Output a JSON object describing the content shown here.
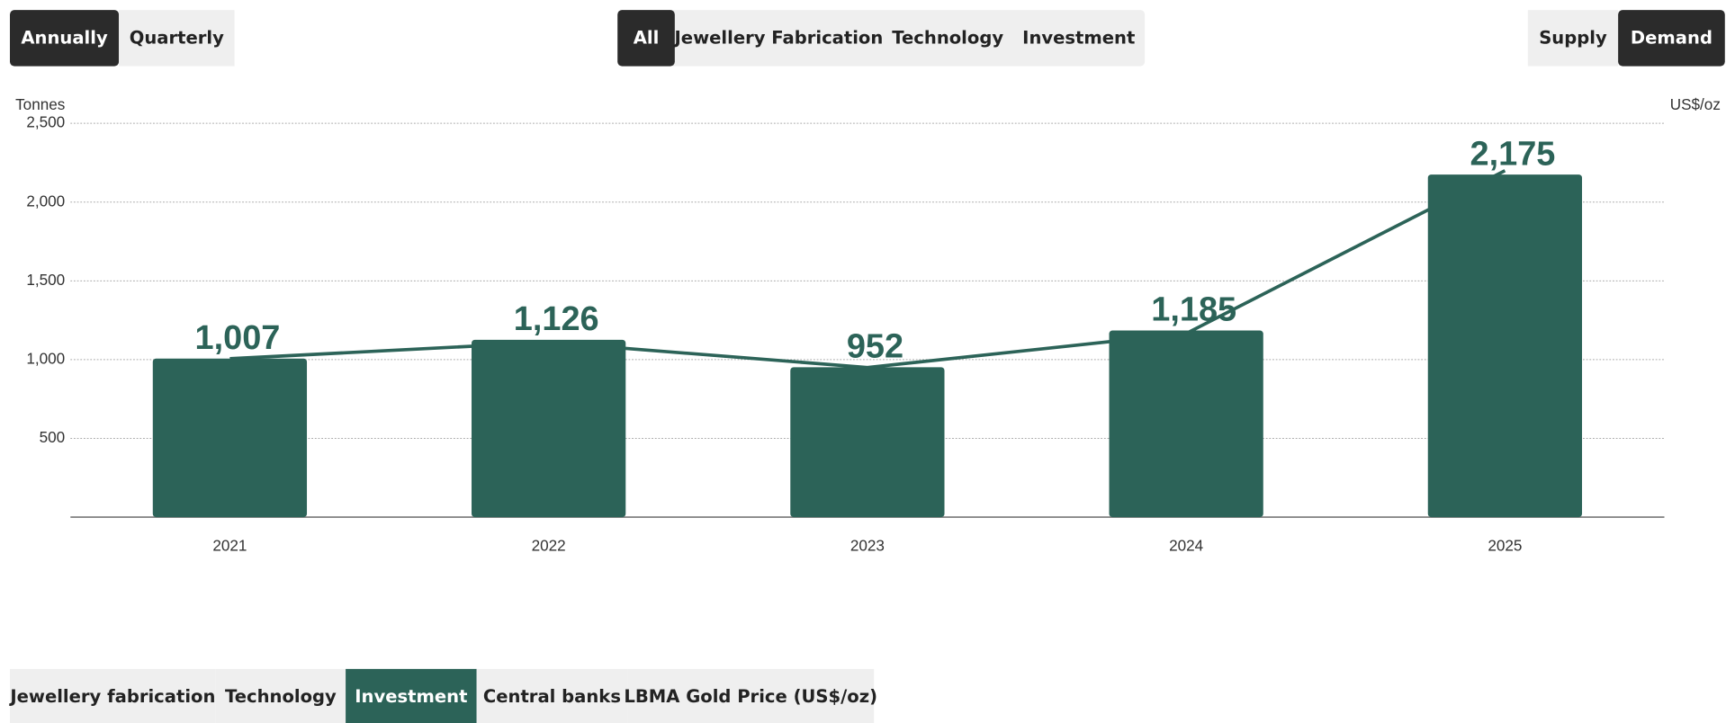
{
  "controls": {
    "period_tabs": [
      "Annually",
      "Quarterly"
    ],
    "category_tabs": [
      "All",
      "Jewellery Fabrication",
      "Technology",
      "Investment"
    ],
    "side_tabs": [
      "Supply",
      "Demand"
    ],
    "bottom_tabs": [
      "Jewellery fabrication",
      "Technology",
      "Investment",
      "Central banks",
      "LBMA Gold Price (US$/oz)"
    ]
  },
  "chart_data": {
    "type": "bar",
    "y_label": "Tonnes",
    "y2_label": "US$/oz",
    "categories": [
      "2021",
      "2022",
      "2023",
      "2024",
      "2025"
    ],
    "ylim": [
      0,
      2500
    ],
    "yticks": [
      500,
      {
        "value": 1000,
        "label": "1,000"
      },
      {
        "value": 1500,
        "label": "1,500"
      },
      {
        "value": 2000,
        "label": "2,000"
      },
      {
        "value": 2500,
        "label": "2,500"
      }
    ],
    "grid": true,
    "series": [
      {
        "type": "bar",
        "color": "#2c6358",
        "values": [
          1007,
          1126,
          952,
          1185,
          2175
        ],
        "value_labels": [
          "1,007",
          "1,126",
          "952",
          "1,185",
          "2,175"
        ]
      },
      {
        "type": "line",
        "color": "#2c6358",
        "values": [
          1006,
          1110,
          950,
          1166,
          2200
        ]
      }
    ]
  }
}
